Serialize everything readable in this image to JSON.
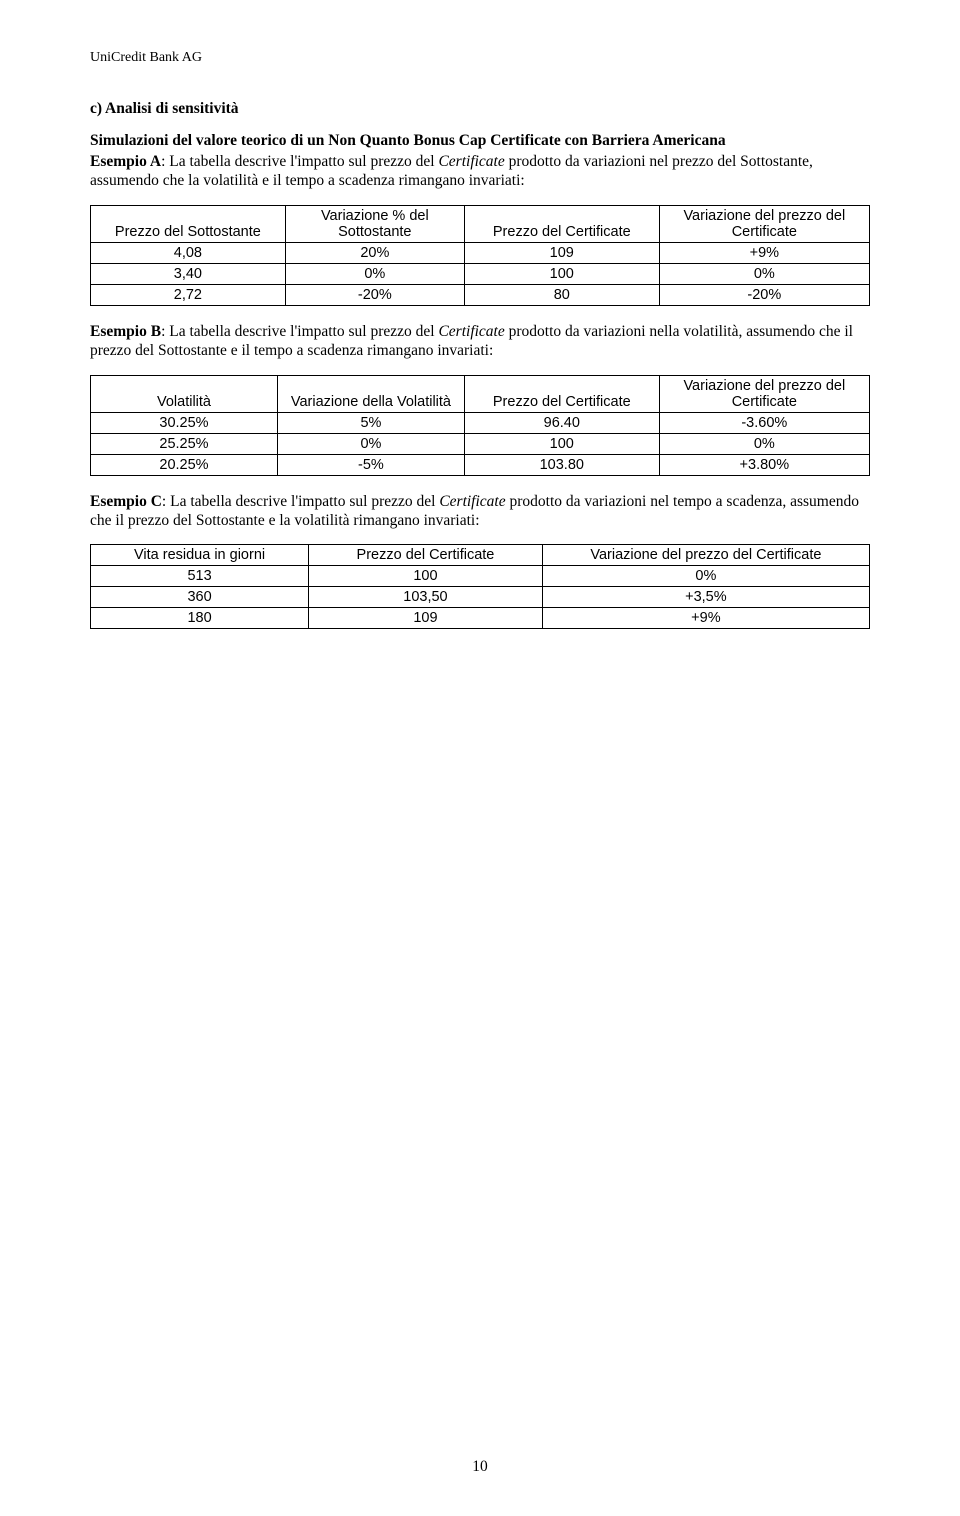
{
  "header": "UniCredit Bank AG",
  "section_c": {
    "title": "c) Analisi di sensitività",
    "subtitle": "Simulazioni del valore teorico di un  Non Quanto Bonus Cap Certificate con Barriera Americana",
    "ex_a_label": "Esempio A",
    "ex_a_pre": ": La tabella descrive l'impatto sul prezzo del ",
    "ex_a_italic": "Certificate",
    "ex_a_post": " prodotto da variazioni nel prezzo del Sottostante, assumendo che la volatilità e il tempo a scadenza rimangano invariati:",
    "ex_b_label": "Esempio B",
    "ex_b_pre": ": La tabella descrive l'impatto sul prezzo del ",
    "ex_b_italic": "Certificate",
    "ex_b_post": " prodotto da variazioni nella volatilità, assumendo che il prezzo del Sottostante e il tempo a scadenza rimangano invariati:",
    "ex_c_label": "Esempio C",
    "ex_c_pre": ": La tabella descrive l'impatto sul prezzo del ",
    "ex_c_italic": "Certificate",
    "ex_c_post": " prodotto da variazioni nel tempo a scadenza, assumendo che il prezzo del Sottostante e la volatilità rimangano invariati:"
  },
  "tableA": {
    "headers": [
      "Prezzo del Sottostante",
      "Variazione % del Sottostante",
      "Prezzo del Certificate",
      "Variazione del prezzo del Certificate"
    ],
    "rows": [
      [
        "4,08",
        "20%",
        "109",
        "+9%"
      ],
      [
        "3,40",
        "0%",
        "100",
        "0%"
      ],
      [
        "2,72",
        "-20%",
        "80",
        "-20%"
      ]
    ]
  },
  "tableB": {
    "headers": [
      "Volatilità",
      "Variazione della Volatilità",
      "Prezzo del Certificate",
      "Variazione del prezzo del Certificate"
    ],
    "rows": [
      [
        "30.25%",
        "5%",
        "96.40",
        "-3.60%"
      ],
      [
        "25.25%",
        "0%",
        "100",
        "0%"
      ],
      [
        "20.25%",
        "-5%",
        "103.80",
        "+3.80%"
      ]
    ]
  },
  "tableC": {
    "headers": [
      "Vita residua in giorni",
      "Prezzo del Certificate",
      "Variazione del prezzo del Certificate"
    ],
    "rows": [
      [
        "513",
        "100",
        "0%"
      ],
      [
        "360",
        "103,50",
        "+3,5%"
      ],
      [
        "180",
        "109",
        "+9%"
      ]
    ]
  },
  "page_number": "10"
}
